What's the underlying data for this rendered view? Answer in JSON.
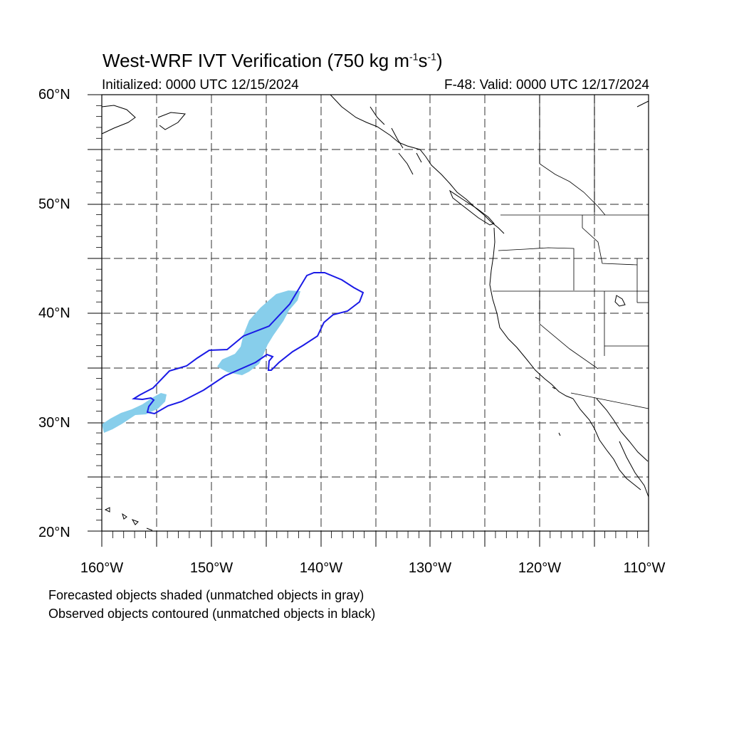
{
  "title_main": "West-WRF IVT Verification (750 kg m",
  "title_exp1": "-1",
  "title_mid": "s",
  "title_exp2": "-1",
  "title_end": ")",
  "initialized": "Initialized: 0000 UTC 12/15/2024",
  "valid": "F-48: Valid: 0000 UTC 12/17/2024",
  "lat_labels": [
    "60°N",
    "50°N",
    "40°N",
    "30°N",
    "20°N"
  ],
  "lon_labels": [
    "160°W",
    "150°W",
    "140°W",
    "130°W",
    "120°W",
    "110°W"
  ],
  "footnote_forecast": "Forecasted objects shaded (unmatched objects in gray)",
  "footnote_observed": "Observed objects contoured (unmatched objects in black)",
  "colors": {
    "forecast_fill": "#87ceeb",
    "observed_contour": "#1a1ae6",
    "coastline": "#000000",
    "grid": "#555555"
  },
  "map_extent": {
    "lon_min": -160,
    "lon_max": -110,
    "lat_min": 20,
    "lat_max": 60
  }
}
